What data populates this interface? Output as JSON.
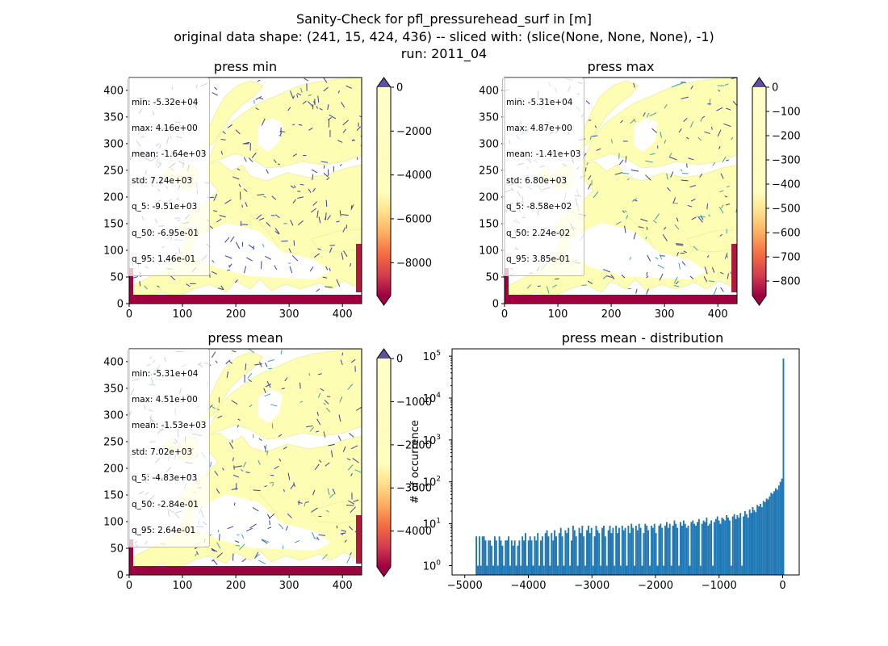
{
  "suptitle": {
    "line1": "Sanity-Check for pfl_pressurehead_surf in [m]",
    "line2": "original data shape: (241, 15, 424, 436) -- sliced with: (slice(None, None, None), -1)",
    "line3": "run: 2011_04"
  },
  "chart_data": [
    {
      "type": "heatmap",
      "title": "press min",
      "xlim": [
        0,
        436
      ],
      "ylim": [
        0,
        424
      ],
      "xticks": [
        0,
        100,
        200,
        300,
        400
      ],
      "yticks": [
        0,
        50,
        100,
        150,
        200,
        250,
        300,
        350,
        400
      ],
      "colorbar": {
        "cmap": "Spectral",
        "range": [
          -9500,
          0
        ],
        "extend": "both",
        "ticks": [
          0,
          -2000,
          -4000,
          -6000,
          -8000
        ]
      },
      "stats": [
        "min: -5.32e+04",
        "max: 4.16e+00",
        "mean: -1.64e+03",
        "std: 7.24e+03",
        "q_5: -9.51e+03",
        "q_50: -6.95e-01",
        "q_95: 1.46e-01"
      ]
    },
    {
      "type": "heatmap",
      "title": "press max",
      "xlim": [
        0,
        436
      ],
      "ylim": [
        0,
        424
      ],
      "xticks": [
        0,
        100,
        200,
        300,
        400
      ],
      "yticks": [
        0,
        50,
        100,
        150,
        200,
        250,
        300,
        350,
        400
      ],
      "colorbar": {
        "cmap": "Spectral",
        "range": [
          -860,
          0
        ],
        "extend": "both",
        "ticks": [
          0,
          -100,
          -200,
          -300,
          -400,
          -500,
          -600,
          -700,
          -800
        ]
      },
      "stats": [
        "min: -5.31e+04",
        "max: 4.87e+00",
        "mean: -1.41e+03",
        "std: 6.80e+03",
        "q_5: -8.58e+02",
        "q_50: 2.24e-02",
        "q_95: 3.85e-01"
      ]
    },
    {
      "type": "heatmap",
      "title": "press mean",
      "xlim": [
        0,
        436
      ],
      "ylim": [
        0,
        424
      ],
      "xticks": [
        0,
        100,
        200,
        300,
        400
      ],
      "yticks": [
        0,
        50,
        100,
        150,
        200,
        250,
        300,
        350,
        400
      ],
      "colorbar": {
        "cmap": "Spectral",
        "range": [
          -4830,
          0
        ],
        "extend": "both",
        "ticks": [
          0,
          -1000,
          -2000,
          -3000,
          -4000
        ]
      },
      "stats": [
        "min: -5.31e+04",
        "max: 4.51e+00",
        "mean: -1.53e+03",
        "std: 7.02e+03",
        "q_5: -4.83e+03",
        "q_50: -2.84e-01",
        "q_95: 2.64e-01"
      ]
    },
    {
      "type": "bar",
      "title": "press mean - distribution",
      "ylabel": "# of occurrence",
      "yscale": "log",
      "xlim": [
        -5200,
        260
      ],
      "ylim": [
        0.6,
        150000
      ],
      "xticks": [
        -5000,
        -4000,
        -3000,
        -2000,
        -1000,
        0
      ],
      "yticks": [
        1,
        10,
        100,
        1000,
        10000,
        100000
      ],
      "bin_range": [
        -4830,
        0
      ],
      "bins": 200,
      "color": "#1f77b4",
      "counts": [
        5,
        1,
        5,
        1,
        5,
        5,
        4,
        1,
        4,
        4,
        3,
        1,
        5,
        4,
        1,
        5,
        4,
        3,
        1,
        4,
        4,
        5,
        1,
        4,
        3,
        4,
        1,
        3,
        4,
        1,
        5,
        4,
        6,
        1,
        4,
        5,
        4,
        1,
        5,
        4,
        6,
        1,
        4,
        5,
        1,
        6,
        7,
        5,
        1,
        6,
        4,
        7,
        5,
        1,
        6,
        8,
        5,
        1,
        7,
        6,
        8,
        1,
        4,
        9,
        7,
        5,
        1,
        8,
        6,
        9,
        5,
        1,
        7,
        9,
        6,
        8,
        1,
        5,
        9,
        7,
        6,
        1,
        8,
        9,
        5,
        1,
        7,
        9,
        6,
        8,
        1,
        9,
        6,
        8,
        1,
        9,
        7,
        8,
        1,
        9,
        6,
        10,
        8,
        1,
        9,
        7,
        10,
        8,
        1,
        6,
        10,
        9,
        7,
        1,
        9,
        8,
        10,
        6,
        1,
        9,
        10,
        8,
        1,
        9,
        11,
        8,
        10,
        1,
        9,
        12,
        10,
        8,
        1,
        11,
        9,
        12,
        10,
        8,
        9,
        1,
        11,
        12,
        10,
        9,
        11,
        13,
        1,
        10,
        12,
        11,
        14,
        9,
        10,
        12,
        1,
        11,
        13,
        15,
        12,
        10,
        14,
        13,
        12,
        16,
        14,
        12,
        1,
        15,
        17,
        13,
        16,
        14,
        18,
        1,
        15,
        20,
        17,
        14,
        22,
        18,
        25,
        21,
        19,
        28,
        26,
        30,
        25,
        35,
        33,
        40,
        38,
        45,
        55,
        52,
        60,
        70,
        65,
        82,
        100,
        120,
        88000
      ]
    }
  ]
}
